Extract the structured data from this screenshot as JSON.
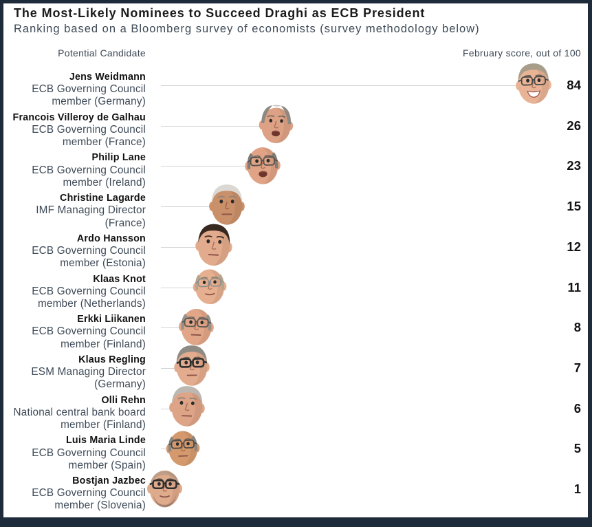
{
  "header": {
    "title": "The Most-Likely Nominees to Succeed Draghi as ECB President",
    "subtitle": "Ranking based on a Bloomberg survey of economists (survey methodology below)"
  },
  "chart_data": {
    "type": "scatter",
    "title": "The Most-Likely Nominees to Succeed Draghi as ECB President",
    "subtitle": "Ranking based on a Bloomberg survey of economists (survey methodology below)",
    "column_headers": {
      "left": "Potential Candidate",
      "right": "February score, out of 100"
    },
    "xlim": [
      0,
      100
    ],
    "x_unit": "February survey score out of 100",
    "marker": "candidate portrait photo",
    "rows": [
      {
        "name": "Jens Weidmann",
        "description_lines": [
          "ECB Governing Council",
          "member (Germany)"
        ],
        "score": 84,
        "photo": {
          "alt": "photo of Jens Weidmann",
          "skin": "#e9b496",
          "hairColor": "#a89d89",
          "style": "full",
          "brow": "#6b6152",
          "glasses": "#4a4a48",
          "glassW": 1.3,
          "mouth": "smile",
          "stubble": false,
          "tilt": -2,
          "size": 47
        }
      },
      {
        "name": "Francois Villeroy de Galhau",
        "description_lines": [
          "ECB Governing Council",
          "member (France)"
        ],
        "score": 26,
        "photo": {
          "alt": "photo of Francois Villeroy de Galhau",
          "skin": "#dda285",
          "hairColor": "#8d8982",
          "style": "receding",
          "brow": "#6e665c",
          "glasses": null,
          "mouth": "open",
          "stubble": false,
          "tilt": 2,
          "size": 45
        }
      },
      {
        "name": "Philip Lane",
        "description_lines": [
          "ECB Governing Council",
          "member (Ireland)"
        ],
        "score": 23,
        "photo": {
          "alt": "photo of Philip Lane",
          "skin": "#e0a385",
          "hairColor": "#7f7b75",
          "style": "sides",
          "brow": "#6e665c",
          "glasses": "#55534f",
          "glassW": 1.3,
          "mouth": "open",
          "stubble": false,
          "tilt": -2,
          "size": 47
        }
      },
      {
        "name": "Christine Lagarde",
        "description_lines": [
          "IMF Managing Director",
          "(France)"
        ],
        "score": 15,
        "photo": {
          "alt": "photo of Christine Lagarde",
          "skin": "#c9906a",
          "hairColor": "#dcd9d4",
          "style": "full",
          "brow": "#8a8680",
          "glasses": null,
          "mouth": "neutral",
          "stubble": false,
          "tilt": 0,
          "size": 47
        }
      },
      {
        "name": "Ardo Hansson",
        "description_lines": [
          "ECB Governing Council",
          "member (Estonia)"
        ],
        "score": 12,
        "photo": {
          "alt": "photo of Ardo Hansson",
          "skin": "#e2ab8d",
          "hairColor": "#37291f",
          "style": "full",
          "brow": "#37291f",
          "glasses": null,
          "mouth": "neutral",
          "stubble": false,
          "tilt": 3,
          "size": 48
        }
      },
      {
        "name": "Klaas Knot",
        "description_lines": [
          "ECB Governing Council",
          "member (Netherlands)"
        ],
        "score": 11,
        "photo": {
          "alt": "photo of Klaas Knot",
          "skin": "#e5af90",
          "hairColor": "#b3a58e",
          "style": "sides",
          "brow": "#8a7d68",
          "glasses": "#8c8c8c",
          "glassW": 1.1,
          "mouth": "slight",
          "stubble": false,
          "tilt": -2,
          "size": 44
        }
      },
      {
        "name": "Erkki Liikanen",
        "description_lines": [
          "ECB Governing Council",
          "member (Finland)"
        ],
        "score": 8,
        "photo": {
          "alt": "photo of Erkki Liikanen",
          "skin": "#e1a687",
          "hairColor": "#97918a",
          "style": "sides",
          "brow": "#746b60",
          "glasses": "#5b5955",
          "glassW": 1.3,
          "mouth": "neutral",
          "stubble": false,
          "tilt": 2,
          "size": 46
        }
      },
      {
        "name": "Klaus Regling",
        "description_lines": [
          "ESM Managing Director",
          "(Germany)"
        ],
        "score": 7,
        "photo": {
          "alt": "photo of Klaus Regling",
          "skin": "#e3ac8e",
          "hairColor": "#8e8a84",
          "style": "full",
          "brow": "#6b6158",
          "glasses": "#2f2f2f",
          "glassW": 1.8,
          "mouth": "neutral",
          "stubble": false,
          "tilt": -1,
          "size": 47
        }
      },
      {
        "name": "Olli Rehn",
        "description_lines": [
          "National central bank board",
          "member (Finland)"
        ],
        "score": 6,
        "photo": {
          "alt": "photo of Olli Rehn",
          "skin": "#dda487",
          "hairColor": "#bcb8b1",
          "style": "full",
          "brow": "#8a8378",
          "glasses": null,
          "mouth": "neutral",
          "stubble": false,
          "tilt": 2,
          "size": 47
        }
      },
      {
        "name": "Luis Maria Linde",
        "description_lines": [
          "ECB Governing Council",
          "member (Spain)"
        ],
        "score": 5,
        "photo": {
          "alt": "photo of Luis Maria Linde",
          "skin": "#d49a6e",
          "hairColor": "#8b8680",
          "style": "sides",
          "brow": "#6e6357",
          "glasses": "#4c4a46",
          "glassW": 1.3,
          "mouth": "neutral",
          "stubble": false,
          "tilt": -2,
          "size": 44
        }
      },
      {
        "name": "Bostjan Jazbec",
        "description_lines": [
          "ECB Governing Council",
          "member (Slovenia)"
        ],
        "score": 1,
        "photo": {
          "alt": "photo of Bostjan Jazbec",
          "skin": "#dfab8d",
          "hairColor": "#9a8f80",
          "style": "bald",
          "brow": "#5f564b",
          "glasses": "#2d2d2d",
          "glassW": 1.8,
          "mouth": "slight",
          "stubble": true,
          "tilt": 0,
          "size": 46
        }
      }
    ]
  },
  "style": {
    "frame_color": "#1d2b3a",
    "background": "#ffffff",
    "connector_color": "#d2d2d2",
    "text_dark": "#121212",
    "text_slate": "#3d4956"
  }
}
